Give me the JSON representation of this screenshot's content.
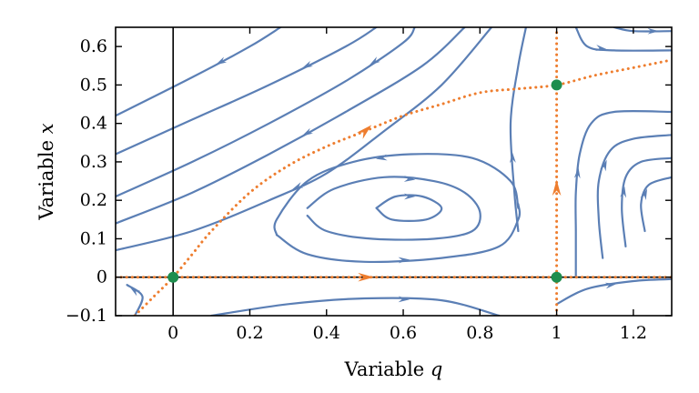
{
  "chart_data": {
    "type": "streamplot",
    "title": "",
    "xlabel": "Variable",
    "xlabel_var": "q",
    "ylabel": "Variable",
    "ylabel_var": "x",
    "xlim": [
      -0.15,
      1.3
    ],
    "ylim": [
      -0.1,
      0.65
    ],
    "xticks": [
      0,
      0.2,
      0.4,
      0.6,
      0.8,
      1,
      1.2
    ],
    "xtick_labels": [
      "0",
      "0.2",
      "0.4",
      "0.6",
      "0.8",
      "1",
      "1.2"
    ],
    "yticks": [
      -0.1,
      0,
      0.1,
      0.2,
      0.3,
      0.4,
      0.5,
      0.6
    ],
    "ytick_labels": [
      "−0.1",
      "0",
      "0.1",
      "0.2",
      "0.3",
      "0.4",
      "0.5",
      "0.6"
    ],
    "grid": false,
    "colors": {
      "streamlines": "#5b7fb5",
      "nullclines": "#ee7d2e",
      "fixed_points": "#1e8e4e",
      "axes": "#000000"
    },
    "streamlines": [
      {
        "points": [
          [
            -0.15,
            0.42
          ],
          [
            0.05,
            0.52
          ],
          [
            0.2,
            0.6
          ],
          [
            0.28,
            0.65
          ]
        ],
        "arrow_at": 1,
        "direction": "backward"
      },
      {
        "points": [
          [
            -0.15,
            0.32
          ],
          [
            0.05,
            0.41
          ],
          [
            0.25,
            0.5
          ],
          [
            0.45,
            0.6
          ],
          [
            0.53,
            0.65
          ]
        ],
        "arrow_at": 2,
        "direction": "backward"
      },
      {
        "points": [
          [
            -0.15,
            0.21
          ],
          [
            0.05,
            0.3
          ],
          [
            0.25,
            0.4
          ],
          [
            0.45,
            0.51
          ],
          [
            0.6,
            0.61
          ],
          [
            0.63,
            0.65
          ]
        ],
        "arrow_at": 3,
        "direction": "backward"
      },
      {
        "points": [
          [
            -0.15,
            0.14
          ],
          [
            0.05,
            0.22
          ],
          [
            0.25,
            0.32
          ],
          [
            0.45,
            0.43
          ],
          [
            0.65,
            0.55
          ],
          [
            0.76,
            0.65
          ]
        ],
        "arrow_at": 2,
        "direction": "backward"
      },
      {
        "points": [
          [
            -0.15,
            0.07
          ],
          [
            0.05,
            0.12
          ],
          [
            0.25,
            0.2
          ],
          [
            0.4,
            0.27
          ],
          [
            0.55,
            0.38
          ],
          [
            0.7,
            0.5
          ],
          [
            0.83,
            0.65
          ]
        ],
        "arrow_at": 2,
        "direction": "backward"
      },
      {
        "points": [
          [
            0.27,
            0.11
          ],
          [
            0.27,
            0.15
          ],
          [
            0.35,
            0.25
          ],
          [
            0.47,
            0.3
          ],
          [
            0.62,
            0.32
          ],
          [
            0.78,
            0.31
          ],
          [
            0.88,
            0.25
          ],
          [
            0.9,
            0.18
          ]
        ],
        "arrow_at": 3,
        "direction": "backward"
      },
      {
        "points": [
          [
            0.35,
            0.18
          ],
          [
            0.42,
            0.23
          ],
          [
            0.55,
            0.26
          ],
          [
            0.68,
            0.25
          ],
          [
            0.76,
            0.22
          ],
          [
            0.8,
            0.17
          ],
          [
            0.78,
            0.12
          ],
          [
            0.68,
            0.1
          ],
          [
            0.52,
            0.1
          ],
          [
            0.4,
            0.12
          ],
          [
            0.35,
            0.16
          ]
        ],
        "arrow_at": 2,
        "direction": "forward",
        "closed": true
      },
      {
        "points": [
          [
            0.53,
            0.18
          ],
          [
            0.58,
            0.21
          ],
          [
            0.65,
            0.21
          ],
          [
            0.7,
            0.18
          ],
          [
            0.66,
            0.15
          ],
          [
            0.57,
            0.15
          ],
          [
            0.53,
            0.18
          ]
        ],
        "arrow_at": 1,
        "direction": "forward",
        "closed": true
      },
      {
        "points": [
          [
            0.27,
            0.11
          ],
          [
            0.35,
            0.06
          ],
          [
            0.5,
            0.04
          ],
          [
            0.7,
            0.05
          ],
          [
            0.85,
            0.08
          ],
          [
            0.9,
            0.15
          ],
          [
            0.9,
            0.19
          ]
        ],
        "arrow_at": 2,
        "direction": "forward"
      },
      {
        "points": [
          [
            -0.1,
            -0.1
          ],
          [
            -0.08,
            -0.05
          ],
          [
            -0.12,
            -0.02
          ]
        ],
        "arrow_at": 1,
        "direction": "forward"
      },
      {
        "points": [
          [
            0.1,
            -0.1
          ],
          [
            0.3,
            -0.07
          ],
          [
            0.5,
            -0.055
          ],
          [
            0.7,
            -0.06
          ],
          [
            0.85,
            -0.1
          ]
        ],
        "arrow_at": 2,
        "direction": "forward"
      },
      {
        "points": [
          [
            1.05,
            0.0
          ],
          [
            1.05,
            0.05
          ],
          [
            1.05,
            0.12
          ],
          [
            1.05,
            0.22
          ],
          [
            1.06,
            0.32
          ],
          [
            1.09,
            0.4
          ],
          [
            1.15,
            0.43
          ],
          [
            1.3,
            0.43
          ]
        ],
        "arrow_at": 3,
        "direction": "forward"
      },
      {
        "points": [
          [
            1.12,
            0.05
          ],
          [
            1.11,
            0.15
          ],
          [
            1.11,
            0.25
          ],
          [
            1.14,
            0.33
          ],
          [
            1.2,
            0.36
          ],
          [
            1.3,
            0.37
          ]
        ],
        "arrow_at": 2,
        "direction": "forward"
      },
      {
        "points": [
          [
            1.18,
            0.08
          ],
          [
            1.17,
            0.18
          ],
          [
            1.18,
            0.26
          ],
          [
            1.22,
            0.3
          ],
          [
            1.3,
            0.31
          ]
        ],
        "arrow_at": 1,
        "direction": "forward"
      },
      {
        "points": [
          [
            1.23,
            0.12
          ],
          [
            1.22,
            0.19
          ],
          [
            1.24,
            0.24
          ],
          [
            1.3,
            0.26
          ]
        ],
        "arrow_at": 1,
        "direction": "forward"
      },
      {
        "points": [
          [
            1.0,
            -0.07
          ],
          [
            1.08,
            -0.03
          ],
          [
            1.2,
            -0.01
          ],
          [
            1.3,
            -0.005
          ]
        ],
        "arrow_at": 1,
        "direction": "forward"
      },
      {
        "points": [
          [
            0.92,
            0.65
          ],
          [
            0.9,
            0.55
          ],
          [
            0.88,
            0.4
          ],
          [
            0.89,
            0.22
          ],
          [
            0.9,
            0.12
          ]
        ],
        "arrow_at": 2,
        "direction": "backward"
      },
      {
        "points": [
          [
            1.05,
            0.65
          ],
          [
            1.08,
            0.6
          ],
          [
            1.15,
            0.59
          ],
          [
            1.3,
            0.59
          ]
        ],
        "arrow_at": 1,
        "direction": "forward"
      },
      {
        "points": [
          [
            1.15,
            0.65
          ],
          [
            1.2,
            0.64
          ],
          [
            1.3,
            0.64
          ]
        ],
        "arrow_at": 1,
        "direction": "forward"
      }
    ],
    "nullclines": [
      {
        "name": "x = 0",
        "points": [
          [
            -0.15,
            0
          ],
          [
            1.3,
            0
          ]
        ],
        "arrows": [
          {
            "x": 0.5,
            "y": 0,
            "dir": "right"
          }
        ]
      },
      {
        "name": "q = 1",
        "points": [
          [
            1,
            -0.1
          ],
          [
            1,
            0.65
          ]
        ],
        "arrows": [
          {
            "x": 1,
            "y": 0.23,
            "dir": "up"
          }
        ]
      },
      {
        "name": "curve",
        "points": [
          [
            -0.1,
            -0.1
          ],
          [
            -0.05,
            -0.05
          ],
          [
            0,
            0
          ],
          [
            0.05,
            0.06
          ],
          [
            0.1,
            0.12
          ],
          [
            0.2,
            0.22
          ],
          [
            0.3,
            0.29
          ],
          [
            0.4,
            0.34
          ],
          [
            0.5,
            0.38
          ],
          [
            0.6,
            0.42
          ],
          [
            0.7,
            0.45
          ],
          [
            0.8,
            0.48
          ],
          [
            0.9,
            0.49
          ],
          [
            1.0,
            0.5
          ],
          [
            1.1,
            0.525
          ],
          [
            1.2,
            0.545
          ],
          [
            1.3,
            0.565
          ]
        ],
        "arrows": [
          {
            "x": 0.5,
            "y": 0.38,
            "dir": "up-right"
          }
        ]
      }
    ],
    "fixed_points": [
      [
        0,
        0
      ],
      [
        1,
        0
      ],
      [
        1,
        0.5
      ]
    ],
    "vertical_line_q0": true
  }
}
